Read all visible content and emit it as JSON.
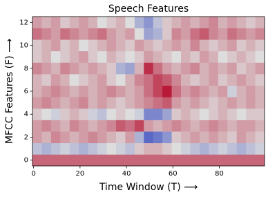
{
  "chart_data": {
    "type": "heatmap",
    "title": "Speech Features",
    "xlabel": "Time Window (T) ⟶",
    "ylabel": "MFCC Features (F) ⟶",
    "x_edges": [
      -0.5,
      3.5,
      7.5,
      11.5,
      15.5,
      19.5,
      23.5,
      27.5,
      31.5,
      35.5,
      39.5,
      43.5,
      47.5,
      51.5,
      55.5,
      59.5,
      63.5,
      67.5,
      71.5,
      75.5,
      79.5,
      83.5,
      87.5,
      91.5,
      95.5,
      99.5
    ],
    "y": [
      0,
      1,
      2,
      3,
      4,
      5,
      6,
      7,
      8,
      9,
      10,
      11,
      12
    ],
    "values": [
      [
        0.55,
        0.55,
        0.55,
        0.55,
        0.55,
        0.55,
        0.55,
        0.55,
        0.55,
        0.55,
        0.55,
        0.55,
        0.55,
        0.55,
        0.55,
        0.55,
        0.55,
        0.55,
        0.55,
        0.55,
        0.55,
        0.55,
        0.55,
        0.55,
        0.55
      ],
      [
        -0.2,
        -0.3,
        -0.2,
        -0.1,
        -0.2,
        -0.3,
        -0.2,
        -0.1,
        0,
        -0.1,
        -0.2,
        0.1,
        0.2,
        0.2,
        0.1,
        0,
        -0.1,
        -0.2,
        -0.3,
        -0.2,
        -0.1,
        -0.2,
        -0.3,
        -0.2,
        -0.1
      ],
      [
        0.3,
        0.2,
        0.4,
        0.3,
        0.2,
        0.3,
        0.4,
        0.3,
        0.2,
        0.1,
        0.3,
        -0.3,
        -0.8,
        -0.7,
        -0.5,
        0.1,
        0.2,
        0.3,
        0.2,
        0.3,
        0.2,
        0.1,
        0.3,
        0.2,
        0.1
      ],
      [
        0.3,
        0.4,
        0.3,
        0.2,
        0.4,
        0.3,
        0.2,
        0.3,
        0.4,
        0.6,
        0.5,
        0.7,
        0.3,
        0.2,
        0.3,
        0.4,
        0.3,
        0.2,
        0.3,
        0.4,
        0.3,
        0.2,
        0.3,
        0.3,
        0.2
      ],
      [
        0.1,
        0,
        -0.1,
        0.1,
        0.2,
        0.1,
        -0.1,
        -0.2,
        0,
        0.1,
        0,
        -0.1,
        -0.6,
        -0.6,
        -0.4,
        0.1,
        0.2,
        0.1,
        0,
        0.1,
        0.2,
        0.1,
        0,
        0.1,
        0.1
      ],
      [
        0.3,
        0.4,
        0.3,
        0.2,
        0.3,
        0.4,
        0.2,
        0.3,
        0.2,
        0.1,
        0.2,
        0.3,
        0.4,
        0.5,
        0.6,
        0.3,
        0.2,
        0.3,
        0.2,
        0.1,
        0.2,
        0.3,
        0.2,
        0.3,
        0.2
      ],
      [
        0.2,
        0.3,
        0.4,
        0.3,
        0.2,
        0.3,
        0.2,
        0.3,
        0.4,
        0.3,
        0.2,
        0.3,
        0.5,
        0.7,
        0.9,
        0.5,
        0.3,
        0.4,
        0.3,
        0.2,
        0.3,
        -0.1,
        0.2,
        0.3,
        0.2
      ],
      [
        0.2,
        0.1,
        0.3,
        0.2,
        0,
        0.1,
        0.2,
        0.3,
        0.1,
        0,
        0.2,
        0.4,
        0.5,
        0.7,
        0.6,
        0.4,
        0.2,
        0.1,
        0.2,
        0.3,
        0.1,
        0.2,
        0.3,
        0.2,
        0.1
      ],
      [
        0.4,
        0.3,
        0.2,
        0.4,
        0.3,
        0.2,
        0.3,
        0.2,
        0.1,
        -0.3,
        -0.4,
        0.2,
        0.8,
        0.5,
        0.3,
        0.2,
        0.3,
        0.4,
        0.2,
        0.3,
        0.2,
        0.3,
        0.1,
        0.2,
        0.3
      ],
      [
        0.1,
        0.2,
        0,
        0.1,
        0.2,
        0.3,
        0.1,
        0,
        0.2,
        0.1,
        0,
        0.1,
        0.3,
        0.2,
        0.1,
        0,
        0.2,
        0.1,
        0.3,
        0.2,
        0,
        0.1,
        0.2,
        0.1,
        0
      ],
      [
        0.1,
        0.2,
        0.3,
        0.1,
        0.2,
        0,
        0.1,
        0.2,
        0.3,
        0.2,
        0.1,
        0.3,
        0.2,
        0.1,
        0.2,
        0.3,
        0.2,
        0.4,
        0.2,
        0.1,
        0.2,
        0.3,
        0.1,
        0.2,
        0.1
      ],
      [
        0.5,
        0.4,
        0.3,
        0.5,
        0.4,
        0.3,
        0.4,
        0.5,
        0.3,
        0.2,
        0.3,
        0,
        -0.4,
        -0.3,
        0.1,
        0.4,
        0.3,
        0.5,
        0.6,
        0.4,
        0.3,
        0.5,
        0.4,
        0.3,
        0.4
      ],
      [
        0.3,
        0.2,
        0.3,
        0.1,
        0.2,
        0.3,
        0.2,
        0,
        0.1,
        0.2,
        0,
        -0.3,
        -0.5,
        -0.2,
        0.1,
        0.2,
        0.3,
        0.2,
        0.3,
        0.4,
        0.2,
        0.3,
        0.2,
        0.1,
        0.2
      ]
    ],
    "vlim": [
      -1,
      1
    ],
    "colorscale": [
      "#3b4cc0",
      "#dddddd",
      "#b40426"
    ],
    "xlim": [
      -0.5,
      99.5
    ],
    "ylim": [
      -0.5,
      12.5
    ],
    "xticks": [
      0,
      20,
      40,
      60,
      80
    ],
    "yticks": [
      0,
      2,
      4,
      6,
      8,
      10,
      12
    ]
  }
}
